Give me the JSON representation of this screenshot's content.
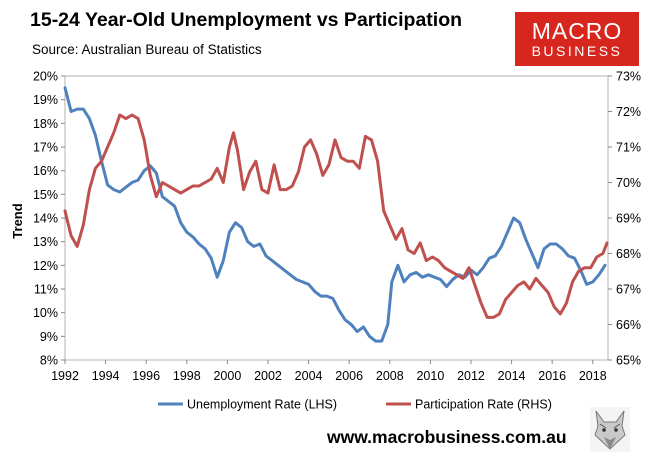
{
  "header": {
    "title": "15-24 Year-Old Unemployment vs Participation",
    "source": "Source: Australian Bureau of Statistics"
  },
  "logo": {
    "line1": "MACRO",
    "line2": "BUSINESS"
  },
  "footer": {
    "website": "www.macrobusiness.com.au"
  },
  "colors": {
    "unemployment": "#4f81bd",
    "participation": "#c0504d",
    "brand": "#d7261e"
  },
  "chart_data": {
    "type": "line",
    "title": "15-24 Year-Old Unemployment vs Participation",
    "ylabel": "Trend",
    "xlabel": "",
    "xlim": [
      1992,
      2018.75
    ],
    "x_ticks": [
      1992,
      1994,
      1996,
      1998,
      2000,
      2002,
      2004,
      2006,
      2008,
      2010,
      2012,
      2014,
      2016,
      2018
    ],
    "x_tick_labels": [
      "1992",
      "1994",
      "1996",
      "1998",
      "2000",
      "2002",
      "2004",
      "2006",
      "2008",
      "2010",
      "2012",
      "2014",
      "2016",
      "2018"
    ],
    "ylim_left": [
      8,
      20
    ],
    "y_ticks_left": [
      "8%",
      "9%",
      "10%",
      "11%",
      "12%",
      "13%",
      "14%",
      "15%",
      "16%",
      "17%",
      "18%",
      "19%",
      "20%"
    ],
    "ylim_right": [
      65,
      73
    ],
    "y_ticks_right": [
      "65%",
      "66%",
      "67%",
      "68%",
      "69%",
      "70%",
      "71%",
      "72%",
      "73%"
    ],
    "grid": false,
    "legend_position": "bottom",
    "series": [
      {
        "name": "Unemployment Rate (LHS)",
        "axis": "left",
        "x": [
          1992.0,
          1992.3,
          1992.6,
          1992.9,
          1993.2,
          1993.5,
          1993.8,
          1994.1,
          1994.4,
          1994.7,
          1995.0,
          1995.3,
          1995.6,
          1995.9,
          1996.2,
          1996.5,
          1996.8,
          1997.1,
          1997.4,
          1997.7,
          1998.0,
          1998.3,
          1998.6,
          1998.9,
          1999.2,
          1999.5,
          1999.8,
          2000.1,
          2000.4,
          2000.7,
          2001.0,
          2001.3,
          2001.6,
          2001.9,
          2002.2,
          2002.5,
          2002.8,
          2003.1,
          2003.4,
          2003.7,
          2004.0,
          2004.3,
          2004.6,
          2004.9,
          2005.2,
          2005.5,
          2005.8,
          2006.1,
          2006.4,
          2006.7,
          2007.0,
          2007.3,
          2007.6,
          2007.9,
          2008.1,
          2008.4,
          2008.7,
          2009.0,
          2009.3,
          2009.6,
          2009.9,
          2010.2,
          2010.5,
          2010.8,
          2011.1,
          2011.4,
          2011.7,
          2012.0,
          2012.3,
          2012.6,
          2012.9,
          2013.2,
          2013.5,
          2013.8,
          2014.1,
          2014.4,
          2014.7,
          2015.0,
          2015.3,
          2015.6,
          2015.9,
          2016.2,
          2016.5,
          2016.8,
          2017.1,
          2017.4,
          2017.7,
          2018.0,
          2018.3,
          2018.6
        ],
        "values": [
          19.5,
          18.5,
          18.6,
          18.6,
          18.2,
          17.5,
          16.4,
          15.4,
          15.2,
          15.1,
          15.3,
          15.5,
          15.6,
          16.0,
          16.2,
          15.9,
          14.9,
          14.7,
          14.5,
          13.8,
          13.4,
          13.2,
          12.9,
          12.7,
          12.3,
          11.5,
          12.2,
          13.4,
          13.8,
          13.6,
          13.0,
          12.8,
          12.9,
          12.4,
          12.2,
          12.0,
          11.8,
          11.6,
          11.4,
          11.3,
          11.2,
          10.9,
          10.7,
          10.7,
          10.6,
          10.1,
          9.7,
          9.5,
          9.2,
          9.4,
          9.0,
          8.8,
          8.8,
          9.5,
          11.3,
          12.0,
          11.3,
          11.6,
          11.7,
          11.5,
          11.6,
          11.5,
          11.4,
          11.1,
          11.4,
          11.6,
          11.5,
          11.8,
          11.6,
          11.9,
          12.3,
          12.4,
          12.8,
          13.4,
          14.0,
          13.8,
          13.1,
          12.5,
          11.9,
          12.7,
          12.9,
          12.9,
          12.7,
          12.4,
          12.3,
          11.8,
          11.2,
          11.3,
          11.6,
          12.0
        ]
      },
      {
        "name": "Participation Rate (RHS)",
        "axis": "right",
        "x": [
          1992.0,
          1992.3,
          1992.6,
          1992.9,
          1993.2,
          1993.5,
          1993.8,
          1994.1,
          1994.4,
          1994.7,
          1995.0,
          1995.3,
          1995.6,
          1995.9,
          1996.2,
          1996.5,
          1996.8,
          1997.1,
          1997.4,
          1997.7,
          1998.0,
          1998.3,
          1998.6,
          1998.9,
          1999.2,
          1999.5,
          1999.8,
          2000.1,
          2000.3,
          2000.5,
          2000.8,
          2001.1,
          2001.4,
          2001.7,
          2002.0,
          2002.3,
          2002.6,
          2002.9,
          2003.2,
          2003.5,
          2003.8,
          2004.1,
          2004.4,
          2004.7,
          2005.0,
          2005.3,
          2005.6,
          2005.9,
          2006.2,
          2006.5,
          2006.8,
          2007.1,
          2007.4,
          2007.7,
          2008.0,
          2008.3,
          2008.6,
          2008.9,
          2009.2,
          2009.5,
          2009.8,
          2010.1,
          2010.4,
          2010.7,
          2011.0,
          2011.3,
          2011.6,
          2011.9,
          2012.2,
          2012.5,
          2012.8,
          2013.1,
          2013.4,
          2013.7,
          2014.0,
          2014.3,
          2014.6,
          2014.9,
          2015.2,
          2015.5,
          2015.8,
          2016.1,
          2016.4,
          2016.7,
          2017.0,
          2017.3,
          2017.6,
          2017.9,
          2018.2,
          2018.5,
          2018.7
        ],
        "values": [
          69.2,
          68.5,
          68.2,
          68.8,
          69.8,
          70.4,
          70.6,
          71.0,
          71.4,
          71.9,
          71.8,
          71.9,
          71.8,
          71.2,
          70.2,
          69.6,
          70.0,
          69.9,
          69.8,
          69.7,
          69.8,
          69.9,
          69.9,
          70.0,
          70.1,
          70.4,
          70.0,
          71.0,
          71.4,
          70.9,
          69.8,
          70.3,
          70.6,
          69.8,
          69.7,
          70.5,
          69.8,
          69.8,
          69.9,
          70.3,
          71.0,
          71.2,
          70.8,
          70.2,
          70.5,
          71.2,
          70.7,
          70.6,
          70.6,
          70.4,
          71.3,
          71.2,
          70.6,
          69.2,
          68.8,
          68.4,
          68.7,
          68.1,
          68.0,
          68.3,
          67.8,
          67.9,
          67.8,
          67.6,
          67.5,
          67.4,
          67.3,
          67.6,
          67.1,
          66.6,
          66.2,
          66.2,
          66.3,
          66.7,
          66.9,
          67.1,
          67.2,
          67.0,
          67.3,
          67.1,
          66.9,
          66.5,
          66.3,
          66.6,
          67.2,
          67.5,
          67.6,
          67.6,
          67.9,
          68.0,
          68.3
        ]
      }
    ]
  }
}
